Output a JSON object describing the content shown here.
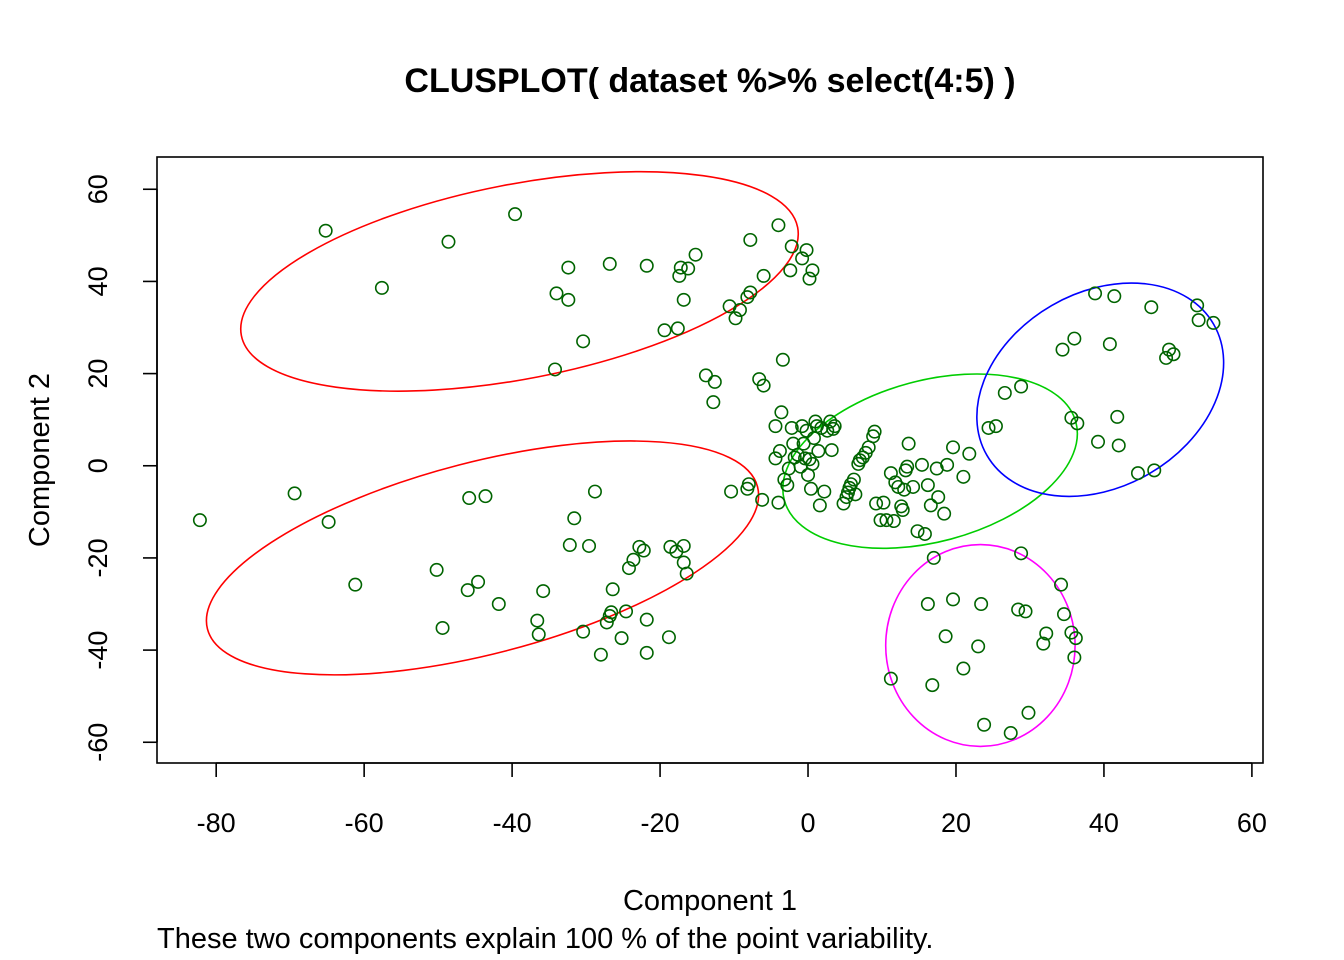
{
  "chart_data": {
    "type": "scatter",
    "title": "CLUSPLOT( dataset %>% select(4:5) )",
    "xlabel": "Component 1",
    "ylabel": "Component 2",
    "subtitle": "These two components explain 100 % of the point variability.",
    "xlim": [
      -88,
      61.5
    ],
    "ylim": [
      -64.5,
      67
    ],
    "x_ticks": [
      -80,
      -60,
      -40,
      -20,
      0,
      20,
      40,
      60
    ],
    "y_ticks": [
      -60,
      -40,
      -20,
      0,
      20,
      40,
      60
    ],
    "grid": false,
    "legend": "none",
    "point_color": "#006400",
    "points": [
      [
        -65.2,
        51.0
      ],
      [
        -57.6,
        38.6
      ],
      [
        -48.6,
        48.6
      ],
      [
        -39.6,
        54.6
      ],
      [
        -34.0,
        37.4
      ],
      [
        -32.4,
        36.0
      ],
      [
        -32.4,
        43.0
      ],
      [
        -30.4,
        27.0
      ],
      [
        -34.2,
        20.9
      ],
      [
        -26.8,
        43.8
      ],
      [
        -21.8,
        43.4
      ],
      [
        -19.4,
        29.4
      ],
      [
        -17.6,
        29.8
      ],
      [
        -17.4,
        41.2
      ],
      [
        -17.2,
        43.0
      ],
      [
        -16.8,
        36.0
      ],
      [
        -16.2,
        42.8
      ],
      [
        -15.2,
        45.8
      ],
      [
        -10.6,
        34.6
      ],
      [
        -9.8,
        32.0
      ],
      [
        -9.2,
        33.8
      ],
      [
        -8.2,
        36.6
      ],
      [
        -7.8,
        37.6
      ],
      [
        -7.8,
        49.0
      ],
      [
        -6.0,
        41.2
      ],
      [
        -4.0,
        52.2
      ],
      [
        -3.4,
        23.0
      ],
      [
        -2.4,
        42.4
      ],
      [
        -2.2,
        47.6
      ],
      [
        -0.8,
        45.0
      ],
      [
        -0.2,
        46.8
      ],
      [
        0.2,
        40.6
      ],
      [
        0.6,
        42.4
      ],
      [
        -13.8,
        19.6
      ],
      [
        -12.6,
        18.2
      ],
      [
        -12.8,
        13.8
      ],
      [
        -6.6,
        18.8
      ],
      [
        -6.0,
        17.4
      ],
      [
        -10.4,
        -5.6
      ],
      [
        -8.2,
        -5.0
      ],
      [
        -8.0,
        -4.0
      ],
      [
        -6.2,
        -7.4
      ],
      [
        -4.4,
        8.6
      ],
      [
        -4.4,
        1.6
      ],
      [
        -4.0,
        -8.0
      ],
      [
        -3.8,
        3.2
      ],
      [
        -3.6,
        11.6
      ],
      [
        -3.2,
        -3.0
      ],
      [
        -2.8,
        -4.2
      ],
      [
        -2.6,
        -0.6
      ],
      [
        -2.2,
        8.2
      ],
      [
        -2.0,
        4.8
      ],
      [
        -1.8,
        1.8
      ],
      [
        -1.4,
        2.4
      ],
      [
        -1.0,
        -0.2
      ],
      [
        -0.8,
        8.6
      ],
      [
        -0.6,
        4.8
      ],
      [
        -0.4,
        1.6
      ],
      [
        -0.2,
        7.6
      ],
      [
        0.0,
        -2.0
      ],
      [
        0.2,
        1.4
      ],
      [
        0.4,
        -5.0
      ],
      [
        0.6,
        0.4
      ],
      [
        0.8,
        6.0
      ],
      [
        1.0,
        9.6
      ],
      [
        1.2,
        8.6
      ],
      [
        1.4,
        3.2
      ],
      [
        1.6,
        -8.6
      ],
      [
        1.8,
        8.2
      ],
      [
        2.2,
        -5.6
      ],
      [
        2.6,
        7.6
      ],
      [
        3.0,
        9.6
      ],
      [
        3.2,
        3.4
      ],
      [
        3.4,
        8.0
      ],
      [
        3.6,
        8.6
      ],
      [
        4.8,
        -8.2
      ],
      [
        5.2,
        -6.8
      ],
      [
        5.4,
        -5.8
      ],
      [
        5.6,
        -4.8
      ],
      [
        5.8,
        -4.0
      ],
      [
        6.2,
        -3.0
      ],
      [
        6.4,
        -6.2
      ],
      [
        6.8,
        0.4
      ],
      [
        7.0,
        1.2
      ],
      [
        7.4,
        1.8
      ],
      [
        7.8,
        2.8
      ],
      [
        8.2,
        4.0
      ],
      [
        8.8,
        6.4
      ],
      [
        9.0,
        7.4
      ],
      [
        9.2,
        -8.2
      ],
      [
        9.8,
        -11.8
      ],
      [
        10.2,
        -8.0
      ],
      [
        10.6,
        -11.8
      ],
      [
        11.2,
        -1.6
      ],
      [
        11.6,
        -12.0
      ],
      [
        11.8,
        -3.6
      ],
      [
        12.2,
        -4.6
      ],
      [
        12.6,
        -8.8
      ],
      [
        12.8,
        -9.6
      ],
      [
        13.0,
        -5.2
      ],
      [
        13.2,
        -1.0
      ],
      [
        13.4,
        -0.2
      ],
      [
        13.6,
        4.8
      ],
      [
        14.2,
        -4.6
      ],
      [
        14.8,
        -14.2
      ],
      [
        15.4,
        0.2
      ],
      [
        15.8,
        -14.8
      ],
      [
        16.2,
        -4.2
      ],
      [
        16.6,
        -8.6
      ],
      [
        17.4,
        -0.6
      ],
      [
        17.6,
        -6.8
      ],
      [
        18.4,
        -10.4
      ],
      [
        18.8,
        0.2
      ],
      [
        19.6,
        4.0
      ],
      [
        21.0,
        -2.4
      ],
      [
        21.8,
        2.6
      ],
      [
        17.0,
        -20.0
      ],
      [
        -82.2,
        -11.8
      ],
      [
        -69.4,
        -6.0
      ],
      [
        -64.8,
        -12.2
      ],
      [
        -61.2,
        -25.8
      ],
      [
        -50.2,
        -22.6
      ],
      [
        -49.4,
        -35.2
      ],
      [
        -46.0,
        -27.0
      ],
      [
        -45.8,
        -7.0
      ],
      [
        -44.6,
        -25.2
      ],
      [
        -43.6,
        -6.6
      ],
      [
        -41.8,
        -30.0
      ],
      [
        -36.6,
        -33.6
      ],
      [
        -36.4,
        -36.6
      ],
      [
        -35.8,
        -27.2
      ],
      [
        -32.2,
        -17.2
      ],
      [
        -31.6,
        -11.4
      ],
      [
        -30.4,
        -36.0
      ],
      [
        -29.6,
        -17.4
      ],
      [
        -28.8,
        -5.6
      ],
      [
        -28.0,
        -41.0
      ],
      [
        -27.2,
        -34.0
      ],
      [
        -26.8,
        -32.6
      ],
      [
        -26.6,
        -31.8
      ],
      [
        -26.4,
        -26.8
      ],
      [
        -25.2,
        -37.4
      ],
      [
        -24.6,
        -31.6
      ],
      [
        -24.2,
        -22.2
      ],
      [
        -23.6,
        -20.4
      ],
      [
        -22.8,
        -17.6
      ],
      [
        -22.2,
        -18.4
      ],
      [
        -21.8,
        -33.4
      ],
      [
        -21.8,
        -40.6
      ],
      [
        -18.8,
        -37.2
      ],
      [
        -18.6,
        -17.6
      ],
      [
        -17.8,
        -18.6
      ],
      [
        -16.8,
        -21.0
      ],
      [
        -16.8,
        -17.4
      ],
      [
        -16.4,
        -23.4
      ],
      [
        11.2,
        -46.2
      ],
      [
        16.2,
        -30.0
      ],
      [
        16.8,
        -47.6
      ],
      [
        18.6,
        -37.0
      ],
      [
        19.6,
        -29.0
      ],
      [
        21.0,
        -44.0
      ],
      [
        23.0,
        -39.2
      ],
      [
        23.4,
        -30.0
      ],
      [
        23.8,
        -56.2
      ],
      [
        27.4,
        -58.0
      ],
      [
        28.4,
        -31.2
      ],
      [
        28.8,
        -19.0
      ],
      [
        29.4,
        -31.6
      ],
      [
        29.8,
        -53.6
      ],
      [
        31.8,
        -38.6
      ],
      [
        32.2,
        -36.4
      ],
      [
        34.2,
        -25.8
      ],
      [
        34.6,
        -32.2
      ],
      [
        35.6,
        -36.2
      ],
      [
        36.2,
        -37.4
      ],
      [
        36.0,
        -41.6
      ],
      [
        24.4,
        8.2
      ],
      [
        25.4,
        8.6
      ],
      [
        26.6,
        15.8
      ],
      [
        28.8,
        17.2
      ],
      [
        34.4,
        25.2
      ],
      [
        35.6,
        10.4
      ],
      [
        36.0,
        27.6
      ],
      [
        36.4,
        9.2
      ],
      [
        38.8,
        37.4
      ],
      [
        39.2,
        5.2
      ],
      [
        40.8,
        26.4
      ],
      [
        41.4,
        36.8
      ],
      [
        41.8,
        10.6
      ],
      [
        42.0,
        4.4
      ],
      [
        44.6,
        -1.6
      ],
      [
        46.4,
        34.4
      ],
      [
        46.8,
        -1.0
      ],
      [
        48.4,
        23.4
      ],
      [
        48.8,
        25.2
      ],
      [
        49.4,
        24.2
      ],
      [
        52.6,
        34.8
      ],
      [
        52.8,
        31.6
      ],
      [
        54.8,
        31.0
      ]
    ],
    "clusters": [
      {
        "color": "#ff0000",
        "cx": -39.0,
        "cy": 40.0,
        "rx": 38.3,
        "ry": 21.1,
        "angle": -11.0
      },
      {
        "color": "#ff0000",
        "cx": -44.0,
        "cy": -20.0,
        "rx": 38.4,
        "ry": 20.8,
        "angle": -14.5
      },
      {
        "color": "#00cd00",
        "cx": 16.5,
        "cy": 1.0,
        "rx": 20.4,
        "ry": 17.5,
        "angle": -15.0
      },
      {
        "color": "#ff00ff",
        "cx": 23.3,
        "cy": -39.0,
        "rx": 12.8,
        "ry": 21.9,
        "angle": 0.0
      },
      {
        "color": "#0000ff",
        "cx": 39.5,
        "cy": 16.5,
        "rx": 17.7,
        "ry": 21.1,
        "angle": -30.0
      }
    ]
  }
}
